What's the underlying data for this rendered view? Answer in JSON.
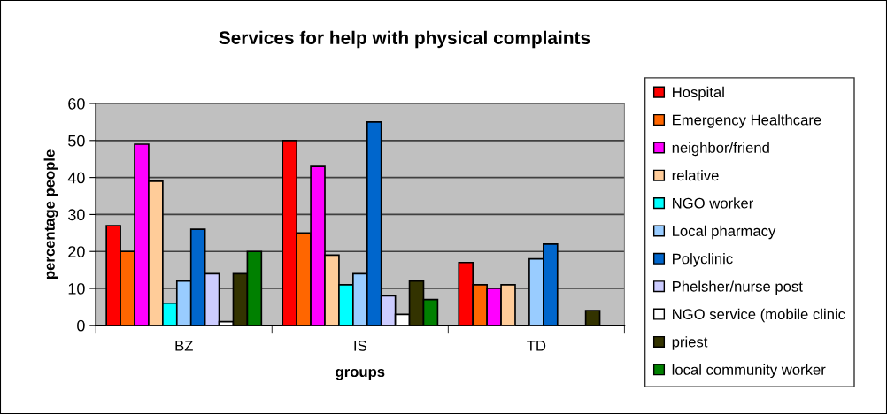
{
  "chart_data": {
    "type": "bar",
    "title": "Services for help with physical complaints",
    "xlabel": "groups",
    "ylabel": "percentage people",
    "categories": [
      "BZ",
      "IS",
      "TD"
    ],
    "series": [
      {
        "name": "Hospital",
        "color": "#ff0000",
        "values": [
          27,
          50,
          17
        ]
      },
      {
        "name": "Emergency Healthcare",
        "color": "#ff6600",
        "values": [
          20,
          25,
          11
        ]
      },
      {
        "name": "neighbor/friend",
        "color": "#ff00ff",
        "values": [
          49,
          43,
          10
        ]
      },
      {
        "name": "relative",
        "color": "#ffcc99",
        "values": [
          39,
          19,
          11
        ]
      },
      {
        "name": "NGO worker",
        "color": "#00ffff",
        "values": [
          6,
          11,
          null
        ]
      },
      {
        "name": "Local pharmacy",
        "color": "#99ccff",
        "values": [
          12,
          14,
          18
        ]
      },
      {
        "name": "Polyclinic",
        "color": "#0066cc",
        "values": [
          26,
          55,
          22
        ]
      },
      {
        "name": "Phelsher/nurse post",
        "color": "#ccccff",
        "values": [
          14,
          8,
          null
        ]
      },
      {
        "name": "NGO service (mobile clinic",
        "color": "#ffffff",
        "values": [
          1,
          3,
          null
        ]
      },
      {
        "name": "priest",
        "color": "#333300",
        "values": [
          14,
          12,
          4
        ]
      },
      {
        "name": "local community worker",
        "color": "#008000",
        "values": [
          20,
          7,
          null
        ]
      }
    ],
    "ylim": [
      0,
      60
    ],
    "yticks": [
      0,
      10,
      20,
      30,
      40,
      50,
      60
    ],
    "grid": "y",
    "legend": "right"
  }
}
